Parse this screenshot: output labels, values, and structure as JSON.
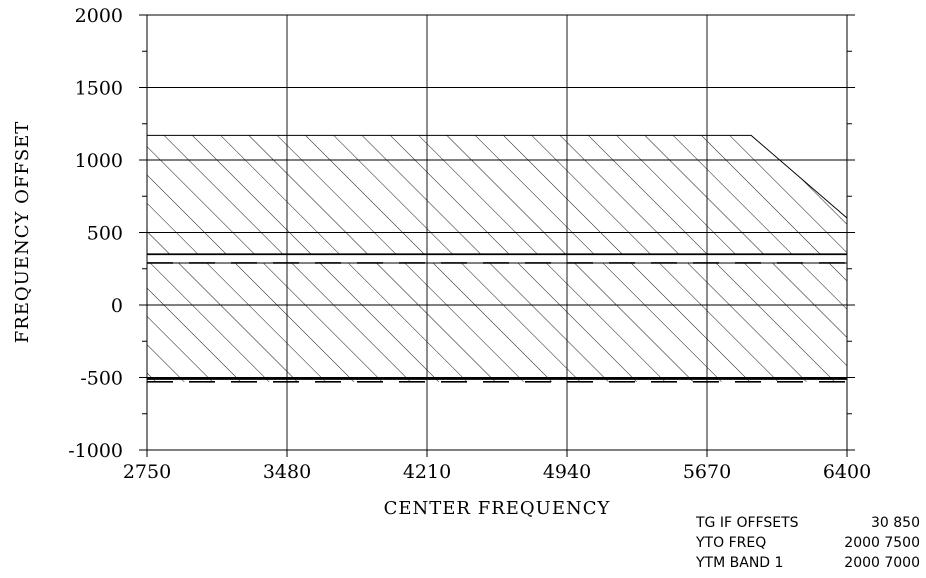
{
  "chart_data": {
    "type": "area",
    "title": "",
    "xlabel": "CENTER FREQUENCY",
    "ylabel": "FREQUENCY OFFSET",
    "xlim": [
      2750,
      6400
    ],
    "ylim": [
      -1000,
      2000
    ],
    "x_ticks": [
      2750,
      3480,
      4210,
      4940,
      5670,
      6400
    ],
    "x_tick_labels": [
      "2750",
      "3480",
      "4210",
      "4940",
      "5670",
      "6400"
    ],
    "y_ticks": [
      -1000,
      -500,
      0,
      500,
      1000,
      1500,
      2000
    ],
    "y_tick_labels": [
      "-1000",
      "-500",
      "0",
      "500",
      "1000",
      "1500",
      "2000"
    ],
    "y_minor_step": 250,
    "grid": true,
    "regions": [
      {
        "upper": {
          "x": [
            2750,
            5900,
            6400
          ],
          "y": [
            1170,
            1170,
            600
          ]
        },
        "lower": {
          "x": [
            2750,
            6400
          ],
          "y": [
            350,
            350
          ]
        },
        "fill": "hatched"
      },
      {
        "upper": {
          "x": [
            2750,
            6400
          ],
          "y": [
            290,
            290
          ]
        },
        "lower": {
          "x": [
            2750,
            6400
          ],
          "y": [
            -530,
            -530
          ]
        },
        "fill": "hatched"
      }
    ],
    "lines": [
      {
        "style": "solid",
        "x": [
          2750,
          6400
        ],
        "y": [
          350,
          350
        ]
      },
      {
        "style": "dashed",
        "x": [
          2750,
          6400
        ],
        "y": [
          290,
          290
        ]
      },
      {
        "style": "solid",
        "x": [
          2750,
          6400
        ],
        "y": [
          -510,
          -510
        ]
      },
      {
        "style": "dashed",
        "x": [
          2750,
          6400
        ],
        "y": [
          -530,
          -530
        ]
      }
    ],
    "annotations": [
      {
        "label": "TG IF OFFSETS",
        "values": "30 850"
      },
      {
        "label": "YTO FREQ",
        "values": "2000 7500"
      },
      {
        "label": "YTM BAND 1",
        "values": "2000 7000"
      }
    ]
  },
  "colors": {
    "ink": "#000000",
    "background": "#ffffff"
  }
}
